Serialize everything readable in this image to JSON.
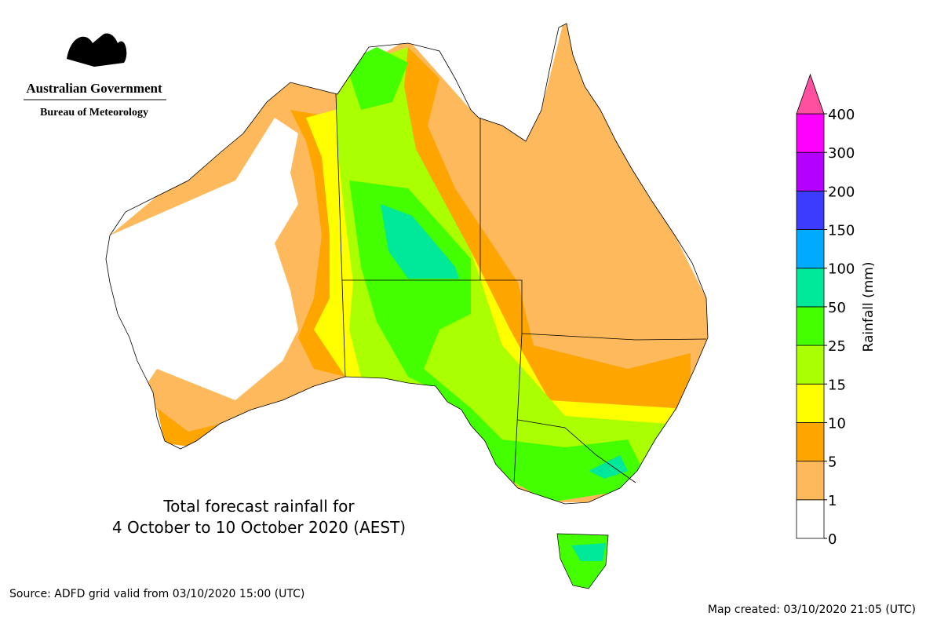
{
  "header": {
    "org": "Australian Government",
    "agency": "Bureau of Meteorology"
  },
  "title": {
    "line1": "Total forecast rainfall for",
    "line2": "4 October to 10 October 2020 (AEST)"
  },
  "legend": {
    "title": "Rainfall (mm)",
    "ticks": [
      0,
      1,
      5,
      10,
      15,
      25,
      50,
      100,
      150,
      200,
      300,
      400
    ],
    "colors": [
      "#ffffff",
      "#fdb95c",
      "#ffa500",
      "#ffff00",
      "#aaff00",
      "#44ff00",
      "#00e89a",
      "#00aaff",
      "#3c3cff",
      "#b400ff",
      "#ff00ff"
    ],
    "extend_color": "#ff50a0"
  },
  "footer": {
    "source": "Source: ADFD grid valid from 03/10/2020 15:00 (UTC)",
    "created": "Map created: 03/10/2020 21:05 (UTC)"
  }
}
